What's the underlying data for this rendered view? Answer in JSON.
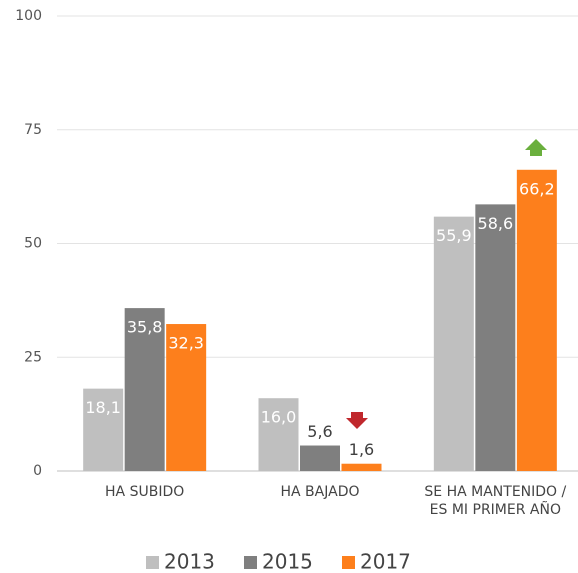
{
  "chart_data": {
    "type": "bar",
    "categories": [
      "HA SUBIDO",
      "HA BAJADO",
      "SE HA MANTENIDO / ES MI PRIMER AÑO"
    ],
    "series": [
      {
        "name": "2013",
        "color": "#bfbfbf",
        "values": [
          18.1,
          16.0,
          55.9
        ],
        "value_labels": [
          "18,1",
          "16,0",
          "55,9"
        ]
      },
      {
        "name": "2015",
        "color": "#7f7f7f",
        "values": [
          35.8,
          5.6,
          58.6
        ],
        "value_labels": [
          "35,8",
          "5,6",
          "58,6"
        ]
      },
      {
        "name": "2017",
        "color": "#fd7f1c",
        "values": [
          32.3,
          1.6,
          66.2
        ],
        "value_labels": [
          "32,3",
          "1,6",
          "66,2"
        ]
      }
    ],
    "ylim": [
      0,
      100
    ],
    "yticks": [
      0,
      25,
      50,
      75,
      100
    ],
    "grid": true,
    "legend": "bottom"
  }
}
